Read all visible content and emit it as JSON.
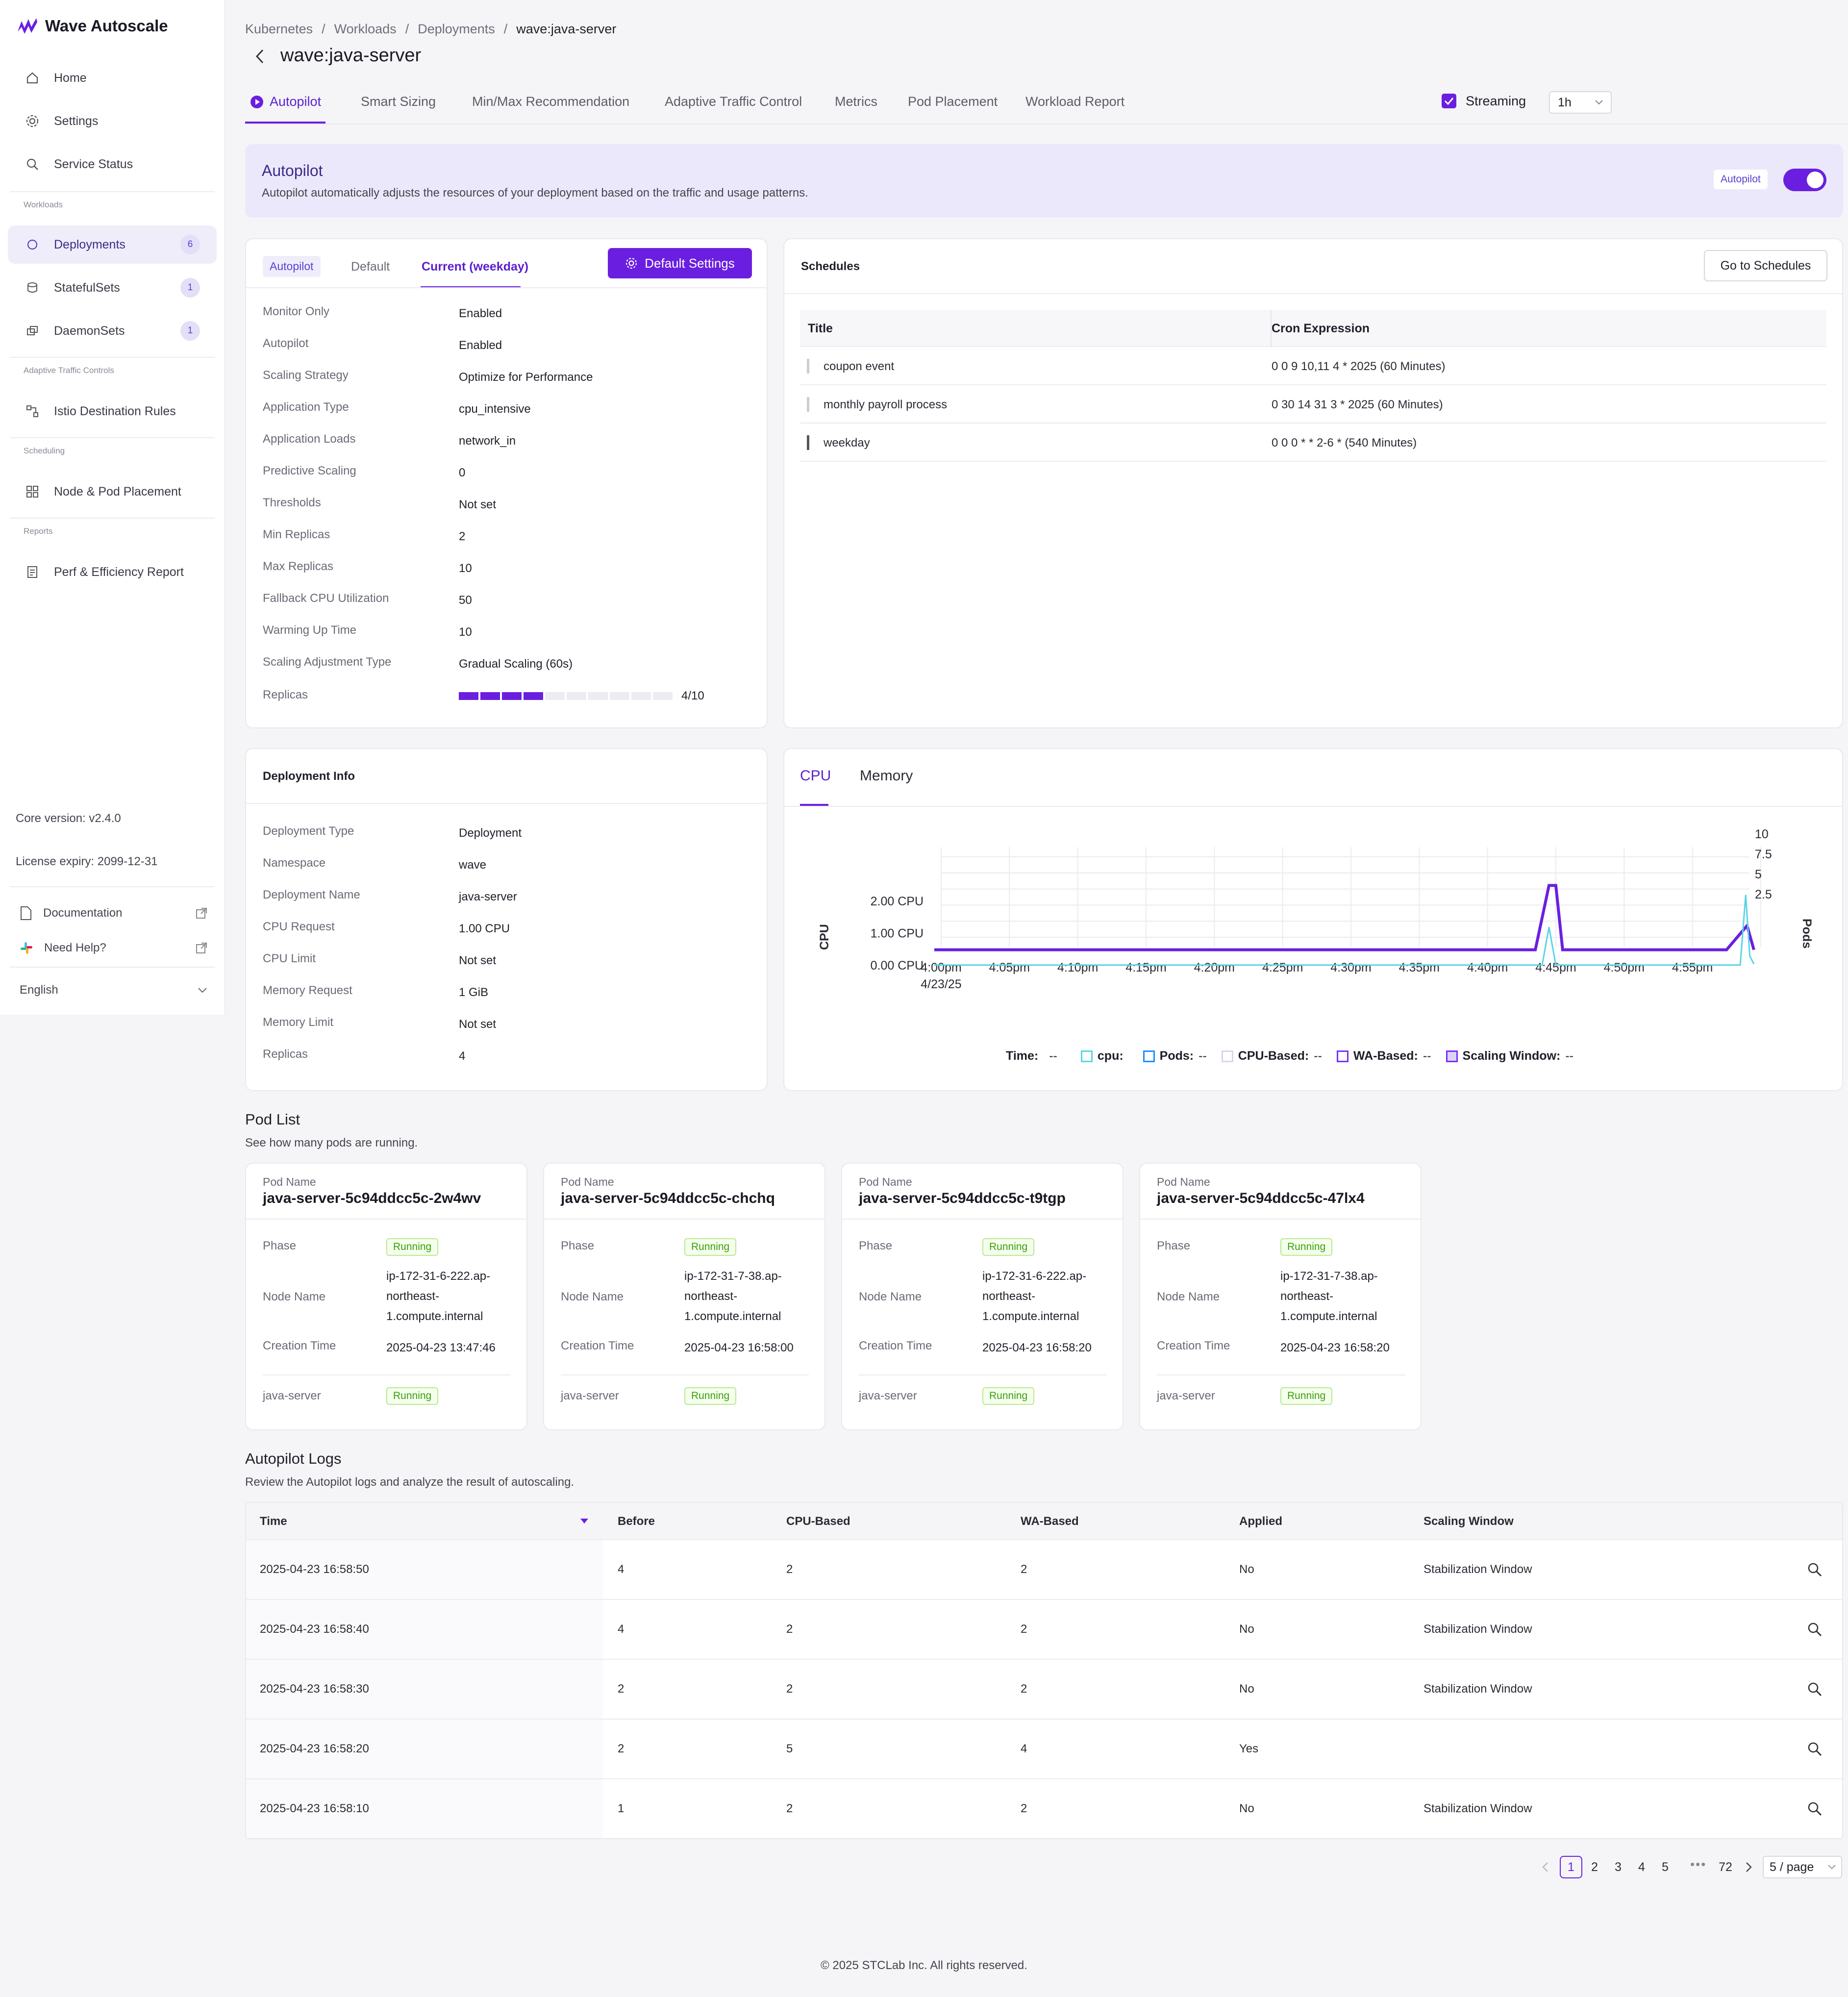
{
  "app": {
    "name": "Wave Autoscale"
  },
  "sidebar": {
    "items": [
      {
        "label": "Home",
        "icon": "home-icon"
      },
      {
        "label": "Settings",
        "icon": "gear-icon"
      },
      {
        "label": "Service Status",
        "icon": "search-icon"
      }
    ],
    "sections": {
      "workloads": "Workloads",
      "atc": "Adaptive Traffic Controls",
      "scheduling": "Scheduling",
      "reports": "Reports"
    },
    "workloads": [
      {
        "label": "Deployments",
        "count": "6"
      },
      {
        "label": "StatefulSets",
        "count": "1"
      },
      {
        "label": "DaemonSets",
        "count": "1"
      }
    ],
    "atc_item": "Istio Destination Rules",
    "sched_item": "Node & Pod Placement",
    "report_item": "Perf & Efficiency Report",
    "core_version": "Core version: v2.4.0",
    "license": "License expiry: 2099-12-31",
    "documentation": "Documentation",
    "help": "Need Help?",
    "language": "English"
  },
  "breadcrumb": {
    "items": [
      "Kubernetes",
      "Workloads",
      "Deployments"
    ],
    "current": "wave:java-server"
  },
  "page_title": "wave:java-server",
  "tabs": [
    "Autopilot",
    "Smart Sizing",
    "Min/Max Recommendation",
    "Adaptive Traffic Control",
    "Metrics",
    "Pod Placement",
    "Workload Report"
  ],
  "streaming": {
    "label": "Streaming",
    "checked": true
  },
  "time_range": "1h",
  "banner": {
    "title": "Autopilot",
    "desc": "Autopilot automatically adjusts the resources of your deployment based on the traffic and usage patterns.",
    "toggle_label": "Autopilot",
    "toggle_on": true
  },
  "config": {
    "tabs": [
      "Autopilot",
      "Default",
      "Current (weekday)"
    ],
    "button": "Default Settings",
    "rows": [
      {
        "k": "Monitor Only",
        "v": "Enabled"
      },
      {
        "k": "Autopilot",
        "v": "Enabled"
      },
      {
        "k": "Scaling Strategy",
        "v": "Optimize for Performance"
      },
      {
        "k": "Application Type",
        "v": "cpu_intensive"
      },
      {
        "k": "Application Loads",
        "v": "network_in"
      },
      {
        "k": "Predictive Scaling",
        "v": "0"
      },
      {
        "k": "Thresholds",
        "v": "Not set"
      },
      {
        "k": "Min Replicas",
        "v": "2"
      },
      {
        "k": "Max Replicas",
        "v": "10"
      },
      {
        "k": "Fallback CPU Utilization",
        "v": "50"
      },
      {
        "k": "Warming Up Time",
        "v": "10"
      },
      {
        "k": "Scaling Adjustment Type",
        "v": "Gradual Scaling (60s)"
      }
    ],
    "replicas_label": "Replicas",
    "replicas_text": "4/10",
    "replicas_current": 4,
    "replicas_max": 10
  },
  "schedules": {
    "title": "Schedules",
    "button": "Go to Schedules",
    "headers": [
      "Title",
      "Cron Expression"
    ],
    "rows": [
      {
        "title": "coupon event",
        "cron": "0 0 9 10,11 4 * 2025 (60 Minutes)"
      },
      {
        "title": "monthly payroll process",
        "cron": "0 30 14 31 3 * 2025 (60 Minutes)"
      },
      {
        "title": "weekday",
        "cron": "0 0 0 * * 2-6 * (540 Minutes)"
      }
    ]
  },
  "deployment": {
    "title": "Deployment Info",
    "rows": [
      {
        "k": "Deployment Type",
        "v": "Deployment"
      },
      {
        "k": "Namespace",
        "v": "wave"
      },
      {
        "k": "Deployment Name",
        "v": "java-server"
      },
      {
        "k": "CPU Request",
        "v": "1.00 CPU"
      },
      {
        "k": "CPU Limit",
        "v": "Not set"
      },
      {
        "k": "Memory Request",
        "v": "1 GiB"
      },
      {
        "k": "Memory Limit",
        "v": "Not set"
      },
      {
        "k": "Replicas",
        "v": "4"
      }
    ]
  },
  "chart_tabs": [
    "CPU",
    "Memory"
  ],
  "chart_data": {
    "type": "line",
    "title": "",
    "ylabel": "CPU",
    "y2label": "Pods",
    "x": [
      "4:00pm",
      "4:05pm",
      "4:10pm",
      "4:15pm",
      "4:20pm",
      "4:25pm",
      "4:30pm",
      "4:35pm",
      "4:40pm",
      "4:45pm",
      "4:50pm",
      "4:55pm"
    ],
    "x_date": "4/23/25",
    "y_ticks": [
      "0.00 CPU",
      "1.00 CPU",
      "2.00 CPU"
    ],
    "y_range": [
      0,
      2.5
    ],
    "y2_ticks": [
      "2.5",
      "5",
      "7.5",
      "10"
    ],
    "y2_range": [
      0,
      10
    ],
    "series": [
      {
        "name": "Pods",
        "values": [
          [
            0,
            1
          ],
          [
            44,
            1
          ],
          [
            45,
            9
          ],
          [
            45.5,
            9
          ],
          [
            46,
            1
          ],
          [
            58,
            1
          ],
          [
            59.5,
            4
          ],
          [
            60,
            1
          ]
        ]
      },
      {
        "name": "cpu",
        "values": [
          [
            0,
            0.02
          ],
          [
            44.5,
            0.02
          ],
          [
            45,
            1.2
          ],
          [
            45.5,
            0.02
          ],
          [
            59,
            0.02
          ],
          [
            59.4,
            2.2
          ],
          [
            59.7,
            0.3
          ],
          [
            60,
            0.05
          ]
        ]
      }
    ],
    "legend": {
      "time": "Time:",
      "time_val": "--",
      "items": [
        {
          "name": "cpu:",
          "val": "",
          "color": "#5ad4e6"
        },
        {
          "name": "Pods:",
          "val": "--",
          "color": "#1890ff"
        },
        {
          "name": "CPU-Based:",
          "val": "--",
          "color": "#d9d4f7"
        },
        {
          "name": "WA-Based:",
          "val": "--",
          "color": "#7b2ff7"
        },
        {
          "name": "Scaling Window:",
          "val": "--",
          "color": "#7b2ff7"
        }
      ]
    }
  },
  "pods": {
    "title": "Pod List",
    "desc": "See how many pods are running.",
    "labels": {
      "name": "Pod Name",
      "phase": "Phase",
      "node": "Node Name",
      "created": "Creation Time",
      "container": "java-server"
    },
    "items": [
      {
        "name": "java-server-5c94ddcc5c-2w4wv",
        "phase": "Running",
        "node": [
          "ip-172-31-6-222.ap-",
          "northeast-",
          "1.compute.internal"
        ],
        "created": "2025-04-23 13:47:46",
        "status": "Running"
      },
      {
        "name": "java-server-5c94ddcc5c-chchq",
        "phase": "Running",
        "node": [
          "ip-172-31-7-38.ap-",
          "northeast-",
          "1.compute.internal"
        ],
        "created": "2025-04-23 16:58:00",
        "status": "Running"
      },
      {
        "name": "java-server-5c94ddcc5c-t9tgp",
        "phase": "Running",
        "node": [
          "ip-172-31-6-222.ap-",
          "northeast-",
          "1.compute.internal"
        ],
        "created": "2025-04-23 16:58:20",
        "status": "Running"
      },
      {
        "name": "java-server-5c94ddcc5c-47lx4",
        "phase": "Running",
        "node": [
          "ip-172-31-7-38.ap-",
          "northeast-",
          "1.compute.internal"
        ],
        "created": "2025-04-23 16:58:20",
        "status": "Running"
      }
    ]
  },
  "logs": {
    "title": "Autopilot Logs",
    "desc": "Review the Autopilot logs and analyze the result of autoscaling.",
    "headers": [
      "Time",
      "Before",
      "CPU-Based",
      "WA-Based",
      "Applied",
      "Scaling Window"
    ],
    "rows": [
      [
        "2025-04-23 16:58:50",
        "4",
        "2",
        "2",
        "No",
        "Stabilization Window"
      ],
      [
        "2025-04-23 16:58:40",
        "4",
        "2",
        "2",
        "No",
        "Stabilization Window"
      ],
      [
        "2025-04-23 16:58:30",
        "2",
        "2",
        "2",
        "No",
        "Stabilization Window"
      ],
      [
        "2025-04-23 16:58:20",
        "2",
        "5",
        "4",
        "Yes",
        ""
      ],
      [
        "2025-04-23 16:58:10",
        "1",
        "2",
        "2",
        "No",
        "Stabilization Window"
      ]
    ]
  },
  "pagination": {
    "pages": [
      "1",
      "2",
      "3",
      "4",
      "5"
    ],
    "ellipsis": "•••",
    "last": "72",
    "page_size": "5 / page"
  },
  "footer": "© 2025 STCLab Inc. All rights reserved.",
  "colors": {
    "accent": "#6a1fe0",
    "banner": "#ece8fb",
    "running": "#389e0d"
  }
}
